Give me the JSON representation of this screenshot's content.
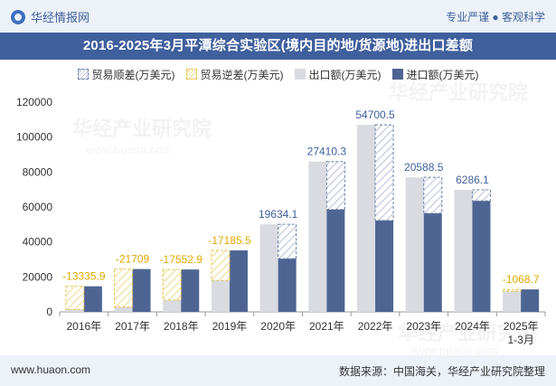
{
  "header": {
    "brand": "华经情报网",
    "tagline": "专业严谨 ● 客观科学"
  },
  "title": "2016-2025年3月平潭综合实验区(境内目的地/货源地)进出口差额",
  "legend": {
    "surplus": "贸易顺差(万美元)",
    "deficit": "贸易逆差(万美元)",
    "export": "出口额(万美元)",
    "import": "进口额(万美元)"
  },
  "watermark": "华经产业研究院",
  "watermark_url": "www.huaon.com",
  "footer": {
    "url": "www.huaon.com",
    "source": "数据来源：中国海关，华经产业研究院整理"
  },
  "chart_data": {
    "type": "bar",
    "categories": [
      "2016年",
      "2017年",
      "2018年",
      "2019年",
      "2020年",
      "2021年",
      "2022年",
      "2023年",
      "2024年",
      "2025年\n1-3月"
    ],
    "series": [
      {
        "name": "出口额(万美元)",
        "values": [
          1300,
          2800,
          6700,
          18000,
          50100,
          86000,
          107000,
          77000,
          69800,
          11800
        ]
      },
      {
        "name": "进口额(万美元)",
        "values": [
          14635.9,
          24509,
          24252.9,
          35185.5,
          30465.9,
          58589.7,
          52299.5,
          56411.5,
          63513.9,
          12868.7
        ]
      }
    ],
    "balance": [
      -13335.9,
      -21709,
      -17552.9,
      -17185.5,
      19634.1,
      27410.3,
      54700.5,
      20588.5,
      6286.1,
      -1068.7
    ],
    "balance_labels": [
      "-13335.9",
      "-21709",
      "-17552.9",
      "-17185.5",
      "19634.1",
      "27410.3",
      "54700.5",
      "20588.5",
      "6286.1",
      "-1068.7"
    ],
    "ylim": [
      0,
      120000
    ],
    "yticks": [
      0,
      20000,
      40000,
      60000,
      80000,
      100000,
      120000
    ],
    "ytick_labels": [
      "0",
      "20000",
      "40000",
      "60000",
      "80000",
      "100000",
      "120000"
    ],
    "grid": false,
    "legend_position": "top",
    "colors": {
      "export": "#d9dbe0",
      "import": "#4e6593",
      "surplus": "#6a7da8",
      "deficit": "#e6c14a",
      "surplus_label": "#3f5f9d",
      "deficit_label": "#e0a800"
    }
  }
}
